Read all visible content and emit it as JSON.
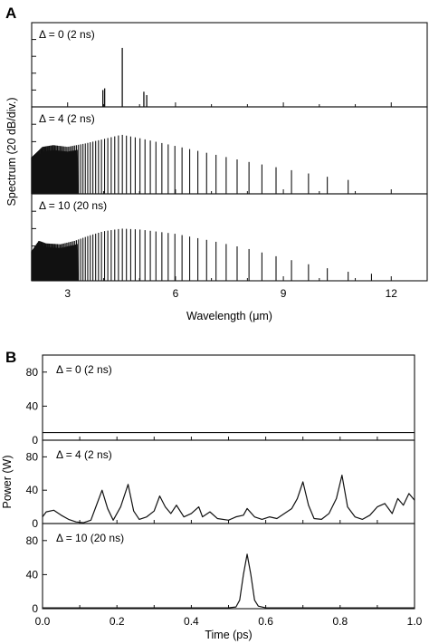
{
  "chart_data": [
    {
      "panel": "A",
      "type": "bar",
      "xlabel": "Wavelength (μm)",
      "ylabel": "Spectrum (20 dB/div.)",
      "xlim": [
        2,
        13
      ],
      "x_ticks": [
        3,
        6,
        9,
        12
      ],
      "y_units": "dB relative (20 dB per division)",
      "subplots": [
        {
          "label": "Δ = 0 (2 ns)",
          "ylim_divisions": [
            0,
            5
          ],
          "lines": [
            {
              "x": 3.98,
              "y": 1.0
            },
            {
              "x": 4.03,
              "y": 1.1
            },
            {
              "x": 4.52,
              "y": 3.5
            },
            {
              "x": 5.12,
              "y": 0.9
            },
            {
              "x": 5.2,
              "y": 0.7
            }
          ]
        },
        {
          "label": "Δ = 4 (2 ns)",
          "ylim_divisions": [
            0,
            5
          ],
          "envelope": [
            {
              "x": 2.0,
              "y": 2.1
            },
            {
              "x": 2.3,
              "y": 2.7
            },
            {
              "x": 2.6,
              "y": 2.8
            },
            {
              "x": 3.0,
              "y": 2.7
            },
            {
              "x": 3.5,
              "y": 2.9
            },
            {
              "x": 4.0,
              "y": 3.15
            },
            {
              "x": 4.5,
              "y": 3.4
            },
            {
              "x": 5.0,
              "y": 3.2
            },
            {
              "x": 6.0,
              "y": 2.75
            },
            {
              "x": 7.0,
              "y": 2.3
            },
            {
              "x": 8.0,
              "y": 1.85
            },
            {
              "x": 9.0,
              "y": 1.45
            },
            {
              "x": 10.0,
              "y": 1.05
            },
            {
              "x": 10.8,
              "y": 0.8
            },
            {
              "x": 11.3,
              "y": 0.7
            }
          ],
          "dense_below": 3.3,
          "line_spacing_near_3um": 0.05,
          "first_line": 2.0,
          "last_line": 11.3
        },
        {
          "label": "Δ = 10 (20 ns)",
          "ylim_divisions": [
            0,
            5
          ],
          "envelope": [
            {
              "x": 2.0,
              "y": 1.7
            },
            {
              "x": 2.2,
              "y": 2.3
            },
            {
              "x": 2.4,
              "y": 2.15
            },
            {
              "x": 2.8,
              "y": 2.1
            },
            {
              "x": 3.2,
              "y": 2.3
            },
            {
              "x": 3.6,
              "y": 2.6
            },
            {
              "x": 4.0,
              "y": 2.85
            },
            {
              "x": 4.5,
              "y": 3.0
            },
            {
              "x": 5.0,
              "y": 2.95
            },
            {
              "x": 6.0,
              "y": 2.7
            },
            {
              "x": 7.0,
              "y": 2.3
            },
            {
              "x": 8.0,
              "y": 1.85
            },
            {
              "x": 9.0,
              "y": 1.3
            },
            {
              "x": 10.0,
              "y": 0.8
            },
            {
              "x": 11.0,
              "y": 0.45
            },
            {
              "x": 11.5,
              "y": 0.4
            }
          ],
          "dense_below": 3.3,
          "line_spacing_near_3um": 0.05,
          "first_line": 2.0,
          "last_line": 11.5
        }
      ]
    },
    {
      "panel": "B",
      "type": "line",
      "xlabel": "Time (ps)",
      "ylabel": "Power (W)",
      "xlim": [
        0.0,
        1.0
      ],
      "x_ticks": [
        "0.0",
        "0.2",
        "0.4",
        "0.6",
        "0.8",
        "1.0"
      ],
      "ylim": [
        0,
        100
      ],
      "y_ticks": [
        0,
        40,
        80
      ],
      "subplots": [
        {
          "label": "Δ = 0 (2 ns)",
          "x": [
            0.0,
            0.25,
            0.5,
            0.75,
            1.0
          ],
          "y": [
            9,
            9,
            9,
            9,
            9
          ]
        },
        {
          "label": "Δ = 4 (2 ns)",
          "x": [
            0.0,
            0.01,
            0.03,
            0.05,
            0.07,
            0.09,
            0.11,
            0.13,
            0.145,
            0.16,
            0.175,
            0.19,
            0.21,
            0.23,
            0.245,
            0.26,
            0.28,
            0.3,
            0.315,
            0.33,
            0.345,
            0.36,
            0.38,
            0.4,
            0.42,
            0.43,
            0.45,
            0.47,
            0.5,
            0.52,
            0.54,
            0.55,
            0.57,
            0.59,
            0.61,
            0.63,
            0.65,
            0.67,
            0.685,
            0.7,
            0.715,
            0.73,
            0.75,
            0.77,
            0.79,
            0.805,
            0.82,
            0.84,
            0.86,
            0.88,
            0.9,
            0.92,
            0.94,
            0.955,
            0.97,
            0.985,
            1.0
          ],
          "y": [
            8,
            14,
            16,
            10,
            5,
            2,
            1,
            4,
            22,
            40,
            18,
            4,
            20,
            47,
            15,
            5,
            8,
            15,
            33,
            20,
            12,
            22,
            8,
            12,
            20,
            8,
            14,
            6,
            4,
            8,
            10,
            18,
            8,
            5,
            8,
            6,
            12,
            18,
            30,
            50,
            22,
            6,
            5,
            12,
            30,
            58,
            20,
            8,
            5,
            10,
            20,
            24,
            12,
            30,
            22,
            36,
            28
          ]
        },
        {
          "label": "Δ = 10 (20 ns)",
          "x": [
            0.0,
            0.5,
            0.52,
            0.53,
            0.54,
            0.55,
            0.56,
            0.57,
            0.58,
            0.6,
            1.0
          ],
          "y": [
            1,
            1,
            2,
            10,
            40,
            64,
            40,
            10,
            3,
            1,
            1
          ]
        }
      ]
    }
  ],
  "panel_labels": [
    "A",
    "B"
  ]
}
